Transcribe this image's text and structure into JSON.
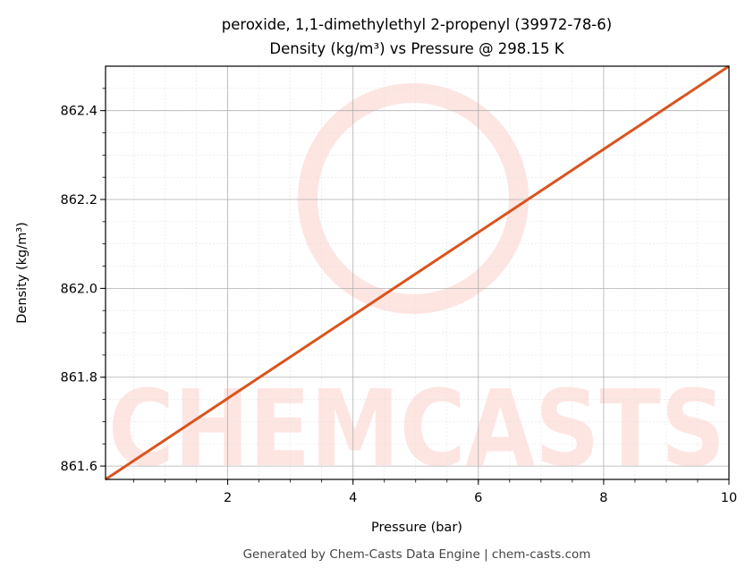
{
  "chart_data": {
    "type": "line",
    "title": "peroxide, 1,1-dimethylethyl 2-propenyl (39972-78-6)",
    "subtitle": "Density (kg/m³) vs Pressure @ 298.15 K",
    "xlabel": "Pressure (bar)",
    "ylabel": "Density (kg/m³)",
    "xlim": [
      0.05,
      10
    ],
    "ylim": [
      861.57,
      862.5
    ],
    "x_ticks": [
      2,
      4,
      6,
      8,
      10
    ],
    "y_ticks": [
      861.6,
      861.8,
      862.0,
      862.2,
      862.4
    ],
    "x_tick_labels": [
      "2",
      "4",
      "6",
      "8",
      "10"
    ],
    "y_tick_labels": [
      "861.6",
      "861.8",
      "862.0",
      "862.2",
      "862.4"
    ],
    "grid": true,
    "series": [
      {
        "color": "#d9541e",
        "x": [
          0.05,
          10
        ],
        "y": [
          861.57,
          862.5
        ]
      }
    ]
  },
  "watermark": {
    "text": "CHEMCASTS",
    "color": "#fde5e2"
  },
  "footer": "Generated by Chem-Casts Data Engine | chem-casts.com"
}
